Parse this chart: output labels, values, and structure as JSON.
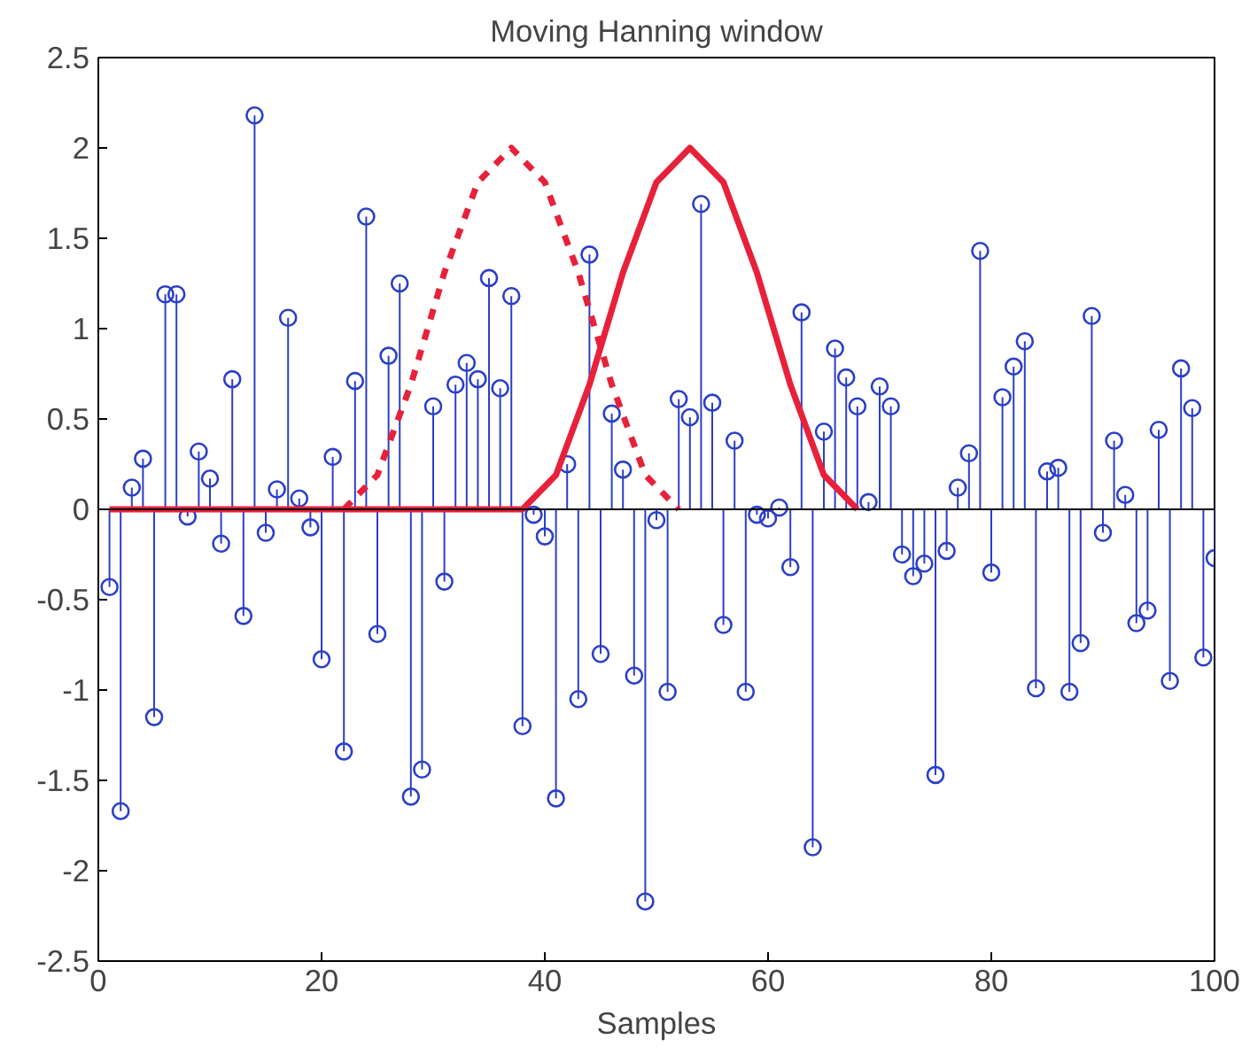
{
  "chart_data": {
    "type": "lollipop",
    "title": "Moving Hanning window",
    "xlabel": "Samples",
    "xlim": [
      0,
      100
    ],
    "ylim": [
      -2.5,
      2.5
    ],
    "xticks": [
      0,
      20,
      40,
      60,
      80,
      100
    ],
    "yticks": [
      -2.5,
      -2,
      -1.5,
      -1,
      -0.5,
      0,
      0.5,
      1,
      1.5,
      2,
      2.5
    ],
    "grid": false,
    "marker": "circle",
    "ref_lines": [
      {
        "axis": "y",
        "value": 0,
        "color": "#000000"
      }
    ],
    "series": [
      {
        "color": "#2b3fc8",
        "x": [
          1,
          2,
          3,
          4,
          5,
          6,
          7,
          8,
          9,
          10,
          11,
          12,
          13,
          14,
          15,
          16,
          17,
          18,
          19,
          20,
          21,
          22,
          23,
          24,
          25,
          26,
          27,
          28,
          29,
          30,
          31,
          32,
          33,
          34,
          35,
          36,
          37,
          38,
          39,
          40,
          41,
          42,
          43,
          44,
          45,
          46,
          47,
          48,
          49,
          50,
          51,
          52,
          53,
          54,
          55,
          56,
          57,
          58,
          59,
          60,
          61,
          62,
          63,
          64,
          65,
          66,
          67,
          68,
          69,
          70,
          71,
          72,
          73,
          74,
          75,
          76,
          77,
          78,
          79,
          80,
          81,
          82,
          83,
          84,
          85,
          86,
          87,
          88,
          89,
          90,
          91,
          92,
          93,
          94,
          95,
          96,
          97,
          98,
          99,
          100
        ],
        "values": [
          -0.43,
          -1.67,
          0.12,
          0.28,
          -1.15,
          1.19,
          1.19,
          -0.04,
          0.32,
          0.17,
          -0.19,
          0.72,
          -0.59,
          2.18,
          -0.13,
          0.11,
          1.06,
          0.06,
          -0.1,
          -0.83,
          0.29,
          -1.34,
          0.71,
          1.62,
          -0.69,
          0.85,
          1.25,
          -1.59,
          -1.44,
          0.57,
          -0.4,
          0.69,
          0.81,
          0.72,
          1.28,
          0.67,
          1.18,
          -1.2,
          -0.03,
          -0.15,
          -1.6,
          0.25,
          -1.05,
          1.41,
          -0.8,
          0.53,
          0.22,
          -0.92,
          -2.17,
          -0.06,
          -1.01,
          0.61,
          0.51,
          1.69,
          0.59,
          -0.64,
          0.38,
          -1.01,
          -0.03,
          -0.05,
          0.01,
          -0.32,
          1.09,
          -1.87,
          0.43,
          0.89,
          0.73,
          0.57,
          0.04,
          0.68,
          0.57,
          -0.25,
          -0.37,
          -0.3,
          -1.47,
          -0.23,
          0.12,
          0.31,
          1.43,
          -0.35,
          0.62,
          0.79,
          0.93,
          -0.99,
          0.21,
          0.23,
          -1.01,
          -0.74,
          1.07,
          -0.13,
          0.38,
          0.08,
          -0.63,
          -0.56,
          0.44,
          -0.95,
          0.78,
          0.56,
          -0.82,
          -0.27
        ]
      },
      {
        "type": "line",
        "color": "#e8213a",
        "line_style": "dashed",
        "marker": "none",
        "x": [
          22,
          25,
          28,
          31,
          34,
          37,
          40,
          43,
          46,
          49,
          52
        ],
        "values": [
          0,
          0.19,
          0.69,
          1.31,
          1.81,
          2,
          1.81,
          1.31,
          0.69,
          0.19,
          0
        ]
      },
      {
        "type": "line",
        "color": "#e8213a",
        "line_style": "solid",
        "marker": "none",
        "x": [
          1,
          38,
          41,
          44,
          47,
          50,
          53,
          56,
          59,
          62,
          65,
          68
        ],
        "values": [
          0,
          0,
          0.19,
          0.69,
          1.31,
          1.81,
          2,
          1.81,
          1.31,
          0.69,
          0.19,
          0
        ]
      }
    ]
  }
}
